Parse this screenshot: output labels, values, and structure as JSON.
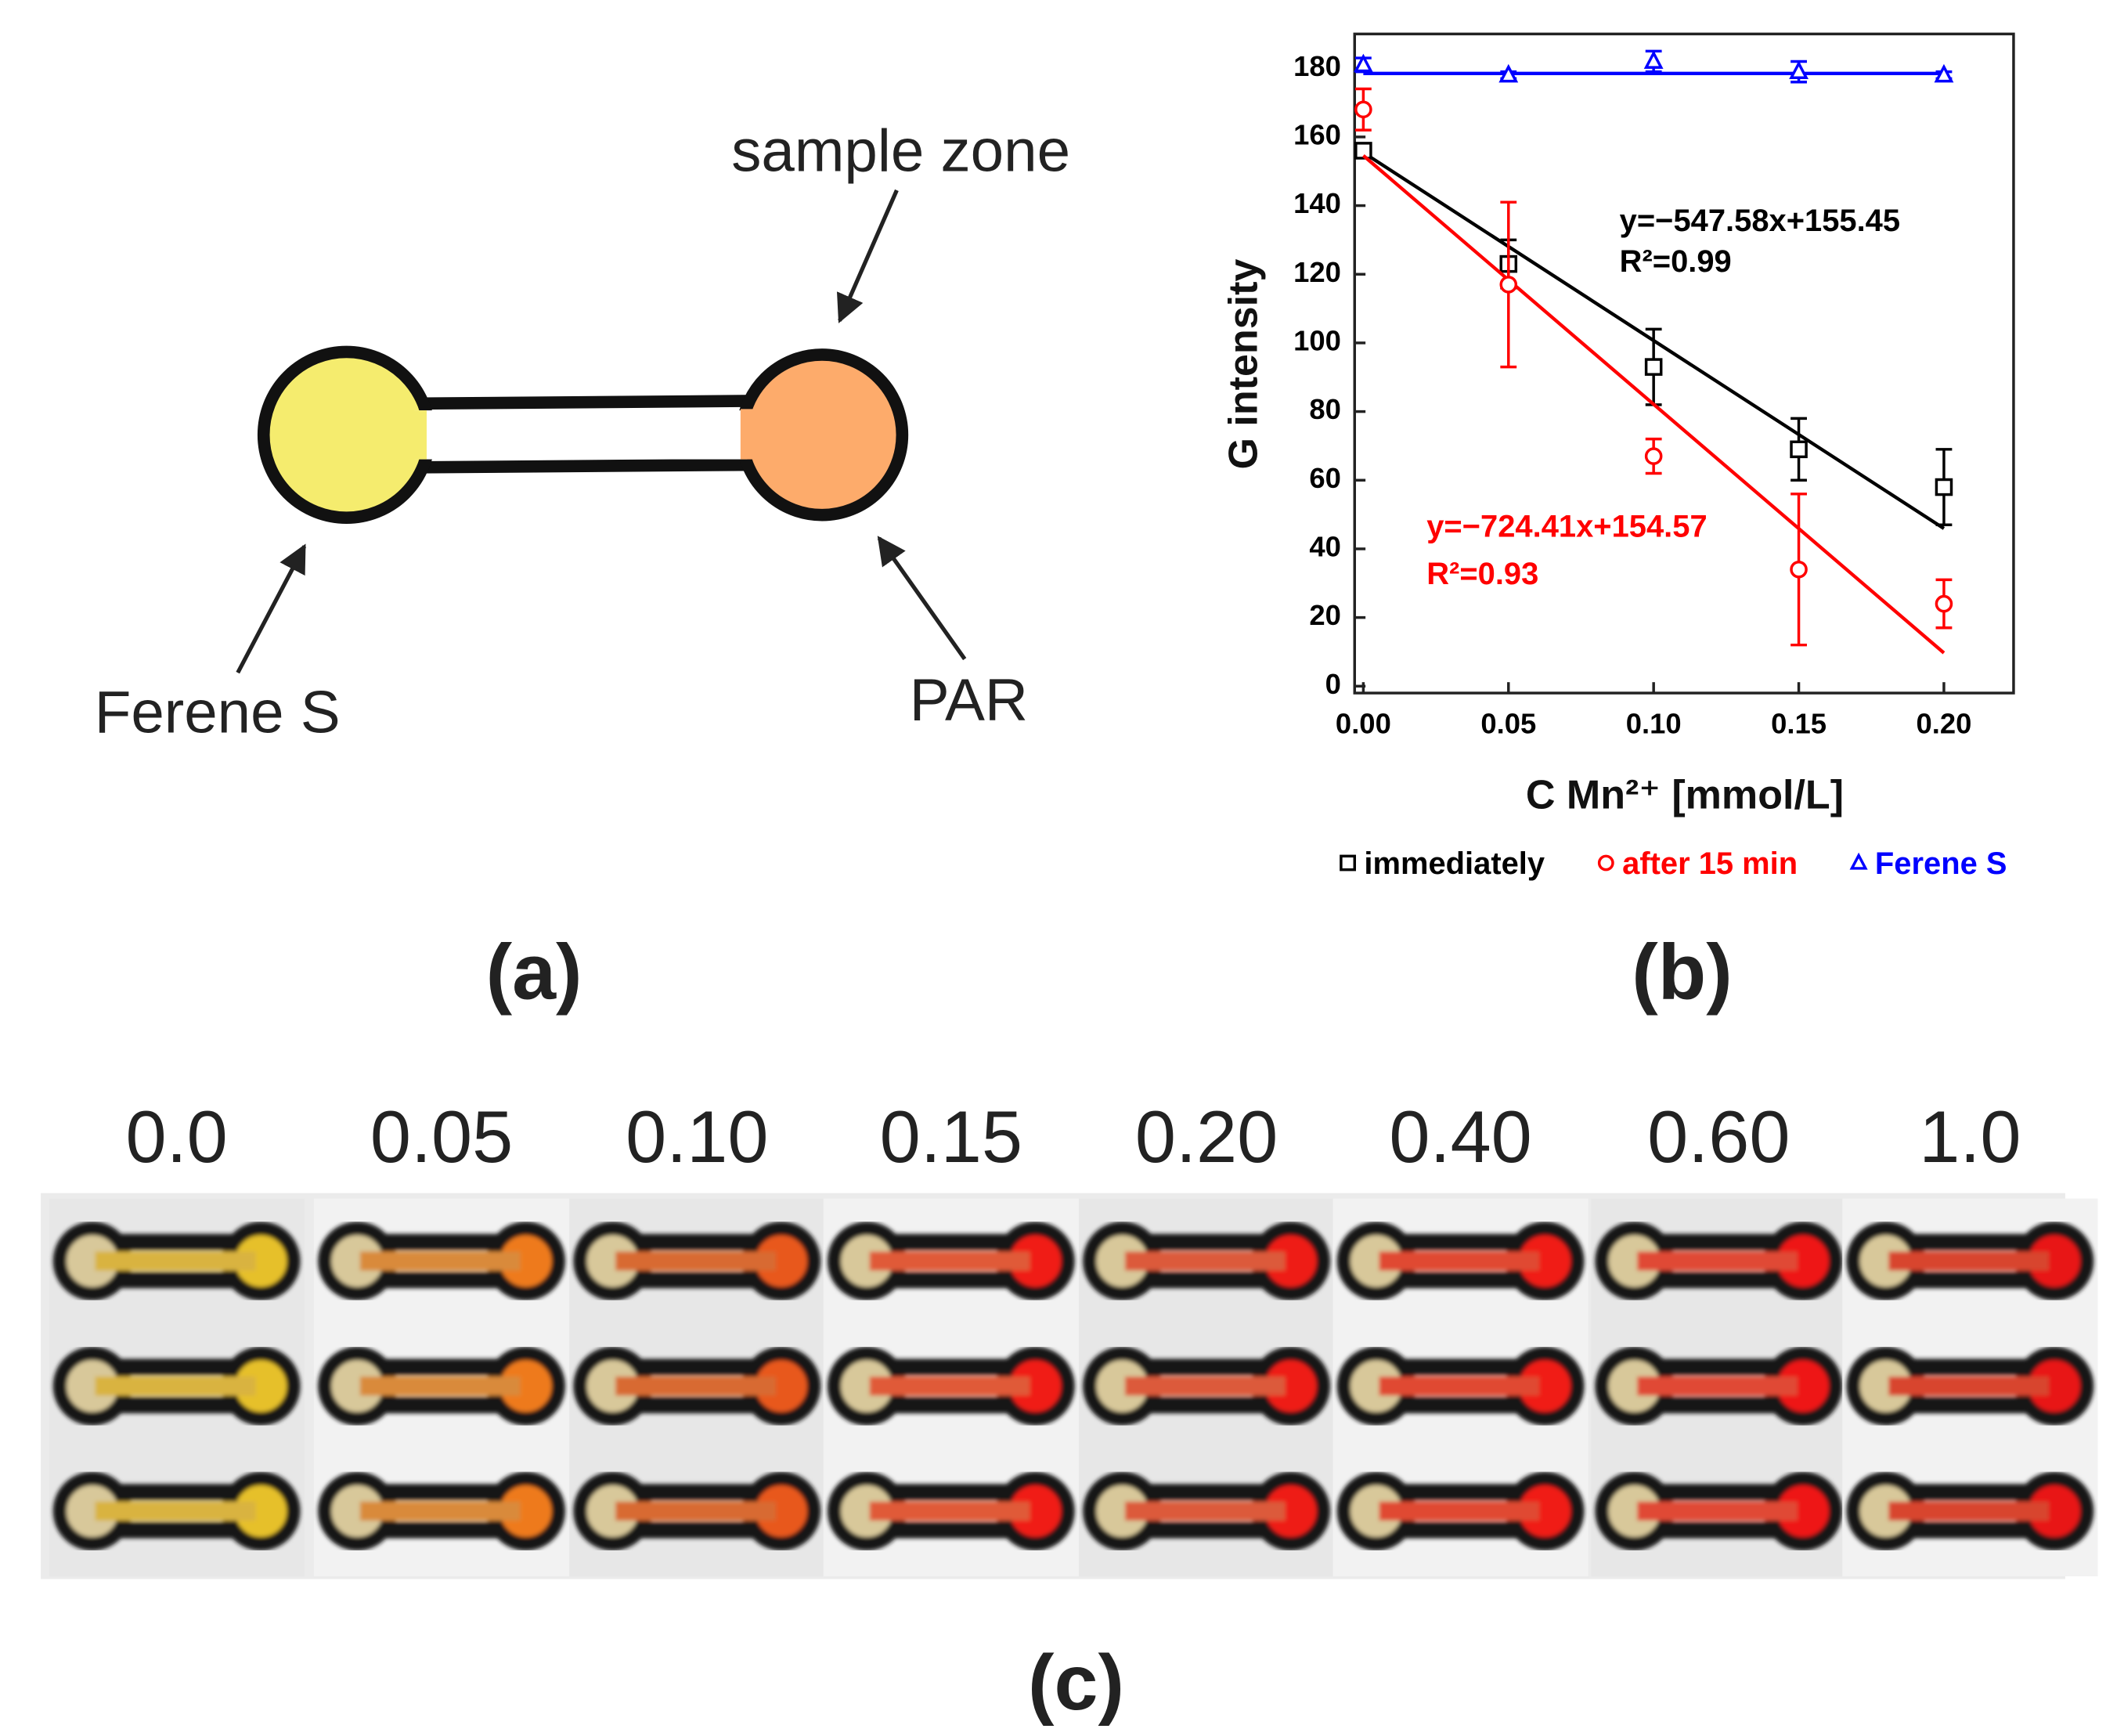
{
  "diagram": {
    "sample_zone": "sample zone",
    "left_reagent": "Ferene S",
    "right_reagent": "PAR"
  },
  "panel_labels": [
    "(a)",
    "(b)",
    "(c)"
  ],
  "chart_data": {
    "type": "scatter",
    "x_label": "C Mn²⁺ [mmol/L]",
    "y_label": "G intensity",
    "x": [
      0,
      0.05,
      0.1,
      0.15,
      0.2
    ],
    "xlim": [
      -0.003,
      0.224
    ],
    "ylim": [
      -2,
      190
    ],
    "xticks": [
      {
        "value": 0,
        "label": "0.00"
      },
      {
        "value": 0.05,
        "label": "0.05"
      },
      {
        "value": 0.1,
        "label": "0.10"
      },
      {
        "value": 0.15,
        "label": "0.15"
      },
      {
        "value": 0.2,
        "label": "0.20"
      }
    ],
    "yticks": [
      0,
      20,
      40,
      60,
      80,
      100,
      120,
      140,
      160,
      180
    ],
    "legend": "below",
    "series": [
      {
        "name": "immediately",
        "color": "#000000",
        "marker": "square",
        "values": [
          156,
          123,
          93,
          69,
          58
        ],
        "errors": [
          2,
          7,
          11,
          9,
          11
        ],
        "fit": {
          "slope": -547.58,
          "intercept": 155.45,
          "equation": "y=−547.58x+155.45",
          "r2": "R²=0.99"
        }
      },
      {
        "name": "after 15 min",
        "color": "#ff0000",
        "marker": "circle",
        "values": [
          168,
          117,
          67,
          34,
          24
        ],
        "errors": [
          6,
          24,
          5,
          22,
          7
        ],
        "fit": {
          "slope": -724.41,
          "intercept": 154.57,
          "equation": "y=−724.41x+154.57",
          "r2": "R²=0.93"
        }
      },
      {
        "name": "Ferene S",
        "color": "#0000ff",
        "marker": "triangle",
        "values": [
          181,
          178,
          182,
          179,
          178
        ],
        "errors": [
          2,
          1,
          3,
          3,
          1
        ],
        "fit": {
          "slope": 0,
          "intercept": 178.5
        }
      }
    ]
  },
  "photos": {
    "labels": [
      "0.0",
      "0.05",
      "0.10",
      "0.15",
      "0.20",
      "0.40",
      "0.60",
      "1.0"
    ]
  }
}
